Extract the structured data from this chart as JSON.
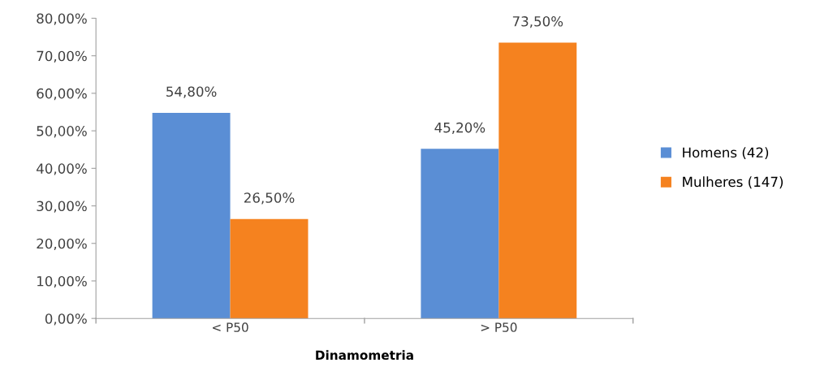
{
  "chart_data": {
    "type": "bar",
    "xlabel": "Dinamometria",
    "categories": [
      "< P50",
      "> P50"
    ],
    "series": [
      {
        "name": "Homens (42)",
        "color": "#5a8ed5",
        "values": [
          54.8,
          45.2
        ],
        "value_labels": [
          "54,80%",
          "45,20%"
        ]
      },
      {
        "name": "Mulheres (147)",
        "color": "#f5821f",
        "values": [
          26.5,
          73.5
        ],
        "value_labels": [
          "26,50%",
          "73,50%"
        ]
      }
    ],
    "ylim": [
      0,
      80
    ],
    "yticks": [
      {
        "value": 0,
        "label": "0,00%"
      },
      {
        "value": 10,
        "label": "10,00%"
      },
      {
        "value": 20,
        "label": "20,00%"
      },
      {
        "value": 30,
        "label": "30,00%"
      },
      {
        "value": 40,
        "label": "40,00%"
      },
      {
        "value": 50,
        "label": "50,00%"
      },
      {
        "value": 60,
        "label": "60,00%"
      },
      {
        "value": 70,
        "label": "70,00%"
      },
      {
        "value": 80,
        "label": "80,00%"
      }
    ],
    "grid": false,
    "legend": "right"
  }
}
